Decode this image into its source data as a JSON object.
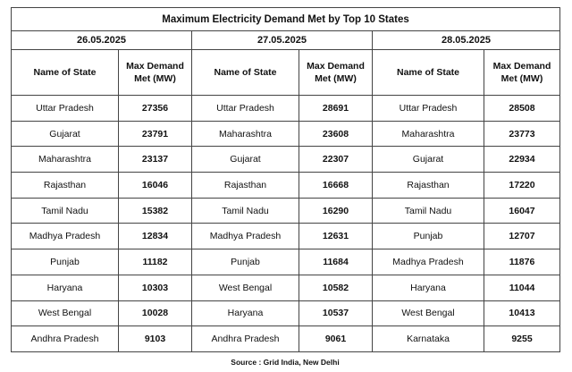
{
  "title": "Maximum Electricity Demand Met by Top 10 States",
  "columns": {
    "state": "Name of State",
    "demand_line1": "Max Demand",
    "demand_line2": "Met (MW)"
  },
  "days": [
    {
      "date": "26.05.2025",
      "rows": [
        {
          "state": "Uttar Pradesh",
          "mw": "27356"
        },
        {
          "state": "Gujarat",
          "mw": "23791"
        },
        {
          "state": "Maharashtra",
          "mw": "23137"
        },
        {
          "state": "Rajasthan",
          "mw": "16046"
        },
        {
          "state": "Tamil Nadu",
          "mw": "15382"
        },
        {
          "state": "Madhya Pradesh",
          "mw": "12834"
        },
        {
          "state": "Punjab",
          "mw": "11182"
        },
        {
          "state": "Haryana",
          "mw": "10303"
        },
        {
          "state": "West Bengal",
          "mw": "10028"
        },
        {
          "state": "Andhra Pradesh",
          "mw": "9103"
        }
      ]
    },
    {
      "date": "27.05.2025",
      "rows": [
        {
          "state": "Uttar Pradesh",
          "mw": "28691"
        },
        {
          "state": "Maharashtra",
          "mw": "23608"
        },
        {
          "state": "Gujarat",
          "mw": "22307"
        },
        {
          "state": "Rajasthan",
          "mw": "16668"
        },
        {
          "state": "Tamil Nadu",
          "mw": "16290"
        },
        {
          "state": "Madhya Pradesh",
          "mw": "12631"
        },
        {
          "state": "Punjab",
          "mw": "11684"
        },
        {
          "state": "West Bengal",
          "mw": "10582"
        },
        {
          "state": "Haryana",
          "mw": "10537"
        },
        {
          "state": "Andhra Pradesh",
          "mw": "9061"
        }
      ]
    },
    {
      "date": "28.05.2025",
      "rows": [
        {
          "state": "Uttar Pradesh",
          "mw": "28508"
        },
        {
          "state": "Maharashtra",
          "mw": "23773"
        },
        {
          "state": "Gujarat",
          "mw": "22934"
        },
        {
          "state": "Rajasthan",
          "mw": "17220"
        },
        {
          "state": "Tamil Nadu",
          "mw": "16047"
        },
        {
          "state": "Punjab",
          "mw": "12707"
        },
        {
          "state": "Madhya Pradesh",
          "mw": "11876"
        },
        {
          "state": "Haryana",
          "mw": "11044"
        },
        {
          "state": "West Bengal",
          "mw": "10413"
        },
        {
          "state": "Karnataka",
          "mw": "9255"
        }
      ]
    }
  ],
  "source": "Source : Grid India, New Delhi"
}
